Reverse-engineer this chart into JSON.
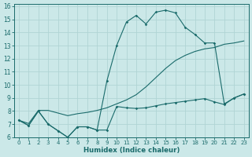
{
  "xlabel": "Humidex (Indice chaleur)",
  "xlim": [
    -0.5,
    23.5
  ],
  "ylim": [
    6,
    16.2
  ],
  "xticks": [
    0,
    1,
    2,
    3,
    4,
    5,
    6,
    7,
    8,
    9,
    10,
    11,
    12,
    13,
    14,
    15,
    16,
    17,
    18,
    19,
    20,
    21,
    22,
    23
  ],
  "yticks": [
    6,
    7,
    8,
    9,
    10,
    11,
    12,
    13,
    14,
    15,
    16
  ],
  "bg_color": "#cbe8e8",
  "line_color": "#1a6b6b",
  "grid_color": "#b0d4d4",
  "line1_x": [
    0,
    1,
    2,
    3,
    4,
    5,
    6,
    7,
    8,
    9,
    10,
    11,
    12,
    13,
    14,
    15,
    16,
    17,
    18,
    19,
    20,
    21,
    22,
    23
  ],
  "line1_y": [
    7.3,
    6.9,
    8.0,
    7.0,
    6.5,
    6.0,
    6.8,
    6.8,
    6.55,
    6.55,
    8.35,
    8.25,
    8.2,
    8.25,
    8.4,
    8.55,
    8.65,
    8.75,
    8.85,
    8.95,
    8.7,
    8.5,
    9.0,
    9.3
  ],
  "line2_x": [
    0,
    1,
    2,
    3,
    4,
    5,
    6,
    7,
    8,
    9,
    10,
    11,
    12,
    13,
    14,
    15,
    16,
    17,
    18,
    19,
    20,
    21,
    22,
    23
  ],
  "line2_y": [
    7.3,
    7.05,
    8.05,
    8.05,
    7.85,
    7.65,
    7.8,
    7.9,
    8.05,
    8.25,
    8.55,
    8.85,
    9.25,
    9.85,
    10.55,
    11.25,
    11.85,
    12.25,
    12.55,
    12.75,
    12.85,
    13.1,
    13.2,
    13.35
  ],
  "line3_x": [
    0,
    1,
    2,
    3,
    4,
    5,
    6,
    7,
    8,
    9,
    10,
    11,
    12,
    13,
    14,
    15,
    16,
    17,
    18,
    19,
    20,
    21,
    22,
    23
  ],
  "line3_y": [
    7.3,
    6.9,
    8.0,
    7.0,
    6.5,
    6.0,
    6.8,
    6.8,
    6.55,
    10.3,
    13.0,
    14.8,
    15.3,
    14.65,
    15.55,
    15.7,
    15.5,
    14.4,
    13.85,
    13.2,
    13.2,
    8.55,
    9.0,
    9.3
  ]
}
